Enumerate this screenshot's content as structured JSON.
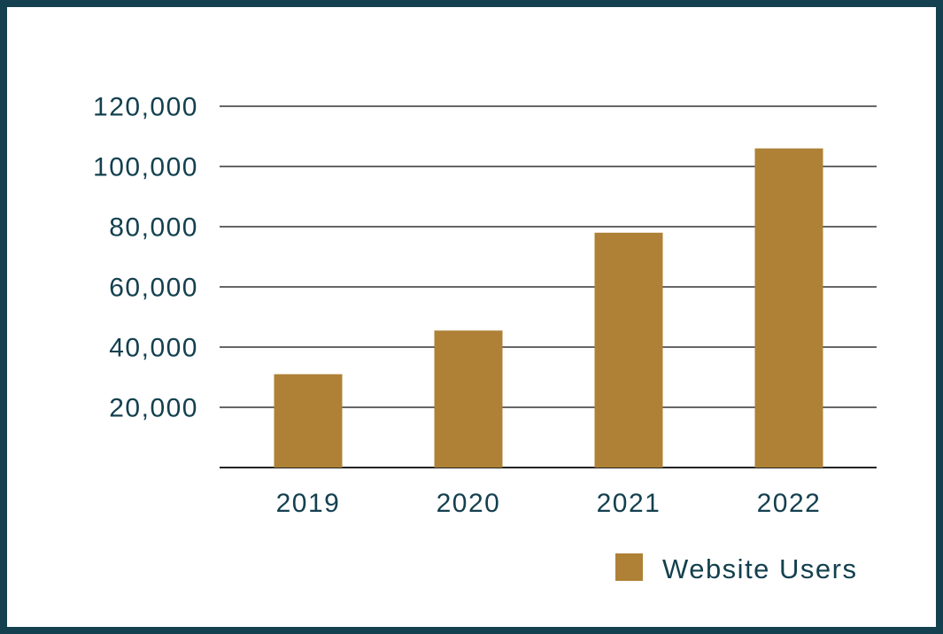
{
  "frame": {
    "border_color": "#14404F",
    "background_color": "#ffffff"
  },
  "chart_data": {
    "type": "bar",
    "title": "",
    "xlabel": "",
    "ylabel": "",
    "categories": [
      "2019",
      "2020",
      "2021",
      "2022"
    ],
    "series": [
      {
        "name": "Website Users",
        "values": [
          31000,
          45500,
          78000,
          106000
        ]
      }
    ],
    "ylim": [
      0,
      130000
    ],
    "yticks": [
      {
        "value": 20000,
        "label": "20,000"
      },
      {
        "value": 40000,
        "label": "40,000"
      },
      {
        "value": 60000,
        "label": "60,000"
      },
      {
        "value": 80000,
        "label": "80,000"
      },
      {
        "value": 100000,
        "label": "100,000"
      },
      {
        "value": 120000,
        "label": "120,000"
      }
    ],
    "grid": true,
    "gridline_color": "#333333",
    "baseline_color": "#222222",
    "bar_color": "#AE8136",
    "label_color": "#14404F",
    "legend": {
      "label": "Website Users",
      "swatch_color": "#AE8136",
      "position": "bottom-right"
    }
  }
}
